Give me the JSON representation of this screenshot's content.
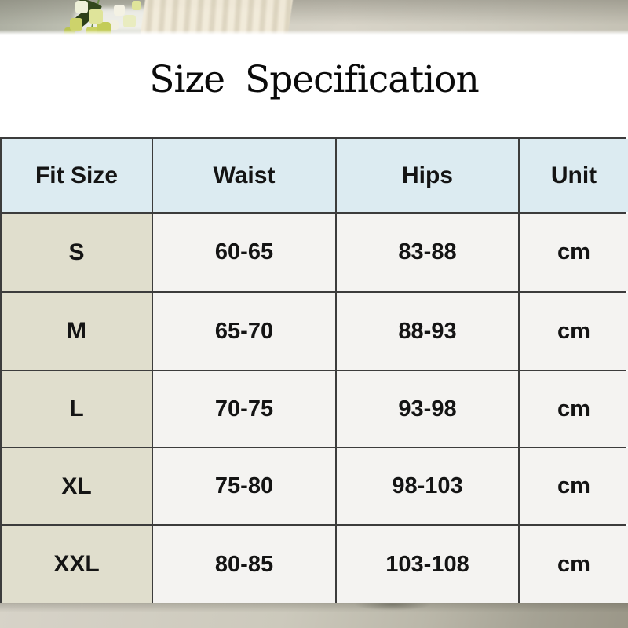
{
  "title": "Size Specification",
  "chart_data": {
    "type": "table",
    "title": "Size Specification",
    "columns": [
      "Fit Size",
      "Waist",
      "Hips",
      "Unit"
    ],
    "rows": [
      [
        "S",
        "60-65",
        "83-88",
        "cm"
      ],
      [
        "M",
        "65-70",
        "88-93",
        "cm"
      ],
      [
        "L",
        "70-75",
        "93-98",
        "cm"
      ],
      [
        "XL",
        "75-80",
        "98-103",
        "cm"
      ],
      [
        "XXL",
        "80-85",
        "103-108",
        "cm"
      ]
    ],
    "unit": "cm"
  },
  "colors": {
    "header_bg": "#dcebf1",
    "size_column_bg": "#e0decd",
    "cell_bg": "#f4f3f1",
    "grid_line": "#3c3c3c",
    "text": "#141414",
    "top_band_base": "#cfccc0",
    "bottom_band_base": "#bab7a9"
  }
}
